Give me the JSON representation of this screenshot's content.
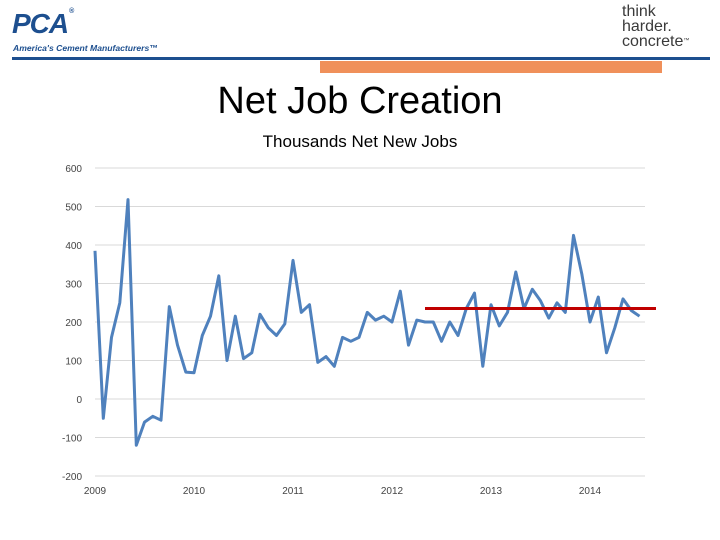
{
  "header": {
    "logo_left": {
      "mark": "PCA",
      "registered": "®",
      "tagline": "America's Cement Manufacturers™"
    },
    "logo_right": {
      "lines": [
        "think",
        "harder.",
        "concrete"
      ],
      "trademark": "™"
    },
    "colors": {
      "brand_blue": "#1d4f8f",
      "accent_orange": "#f0905a"
    }
  },
  "chart_data": {
    "type": "line",
    "title": "Net Job Creation",
    "subtitle": "Thousands Net New Jobs",
    "xlabel": "",
    "ylabel": "",
    "ylim": [
      -200,
      600
    ],
    "y_ticks": [
      -200,
      -100,
      0,
      100,
      200,
      300,
      400,
      500,
      600
    ],
    "x_ticks": [
      "2009",
      "2010",
      "2011",
      "2012",
      "2013",
      "2014"
    ],
    "grid": true,
    "series": [
      {
        "color": "#4f81bd",
        "x_start": "2009-01",
        "frequency": "monthly",
        "values": [
          385,
          -50,
          160,
          250,
          518,
          -120,
          -60,
          -45,
          -55,
          240,
          140,
          70,
          68,
          165,
          215,
          320,
          100,
          215,
          105,
          120,
          220,
          185,
          165,
          195,
          360,
          225,
          245,
          95,
          110,
          85,
          160,
          150,
          160,
          225,
          205,
          215,
          200,
          280,
          140,
          205,
          200,
          200,
          150,
          200,
          165,
          235,
          275,
          85,
          245,
          190,
          225,
          330,
          235,
          285,
          255,
          210,
          250,
          225,
          425,
          325,
          200,
          265,
          120,
          185,
          260,
          230,
          215
        ]
      },
      {
        "color": "#c00000",
        "type": "reference_line",
        "x_range": [
          "2012-05",
          "2014-09"
        ],
        "value": 235
      }
    ]
  }
}
